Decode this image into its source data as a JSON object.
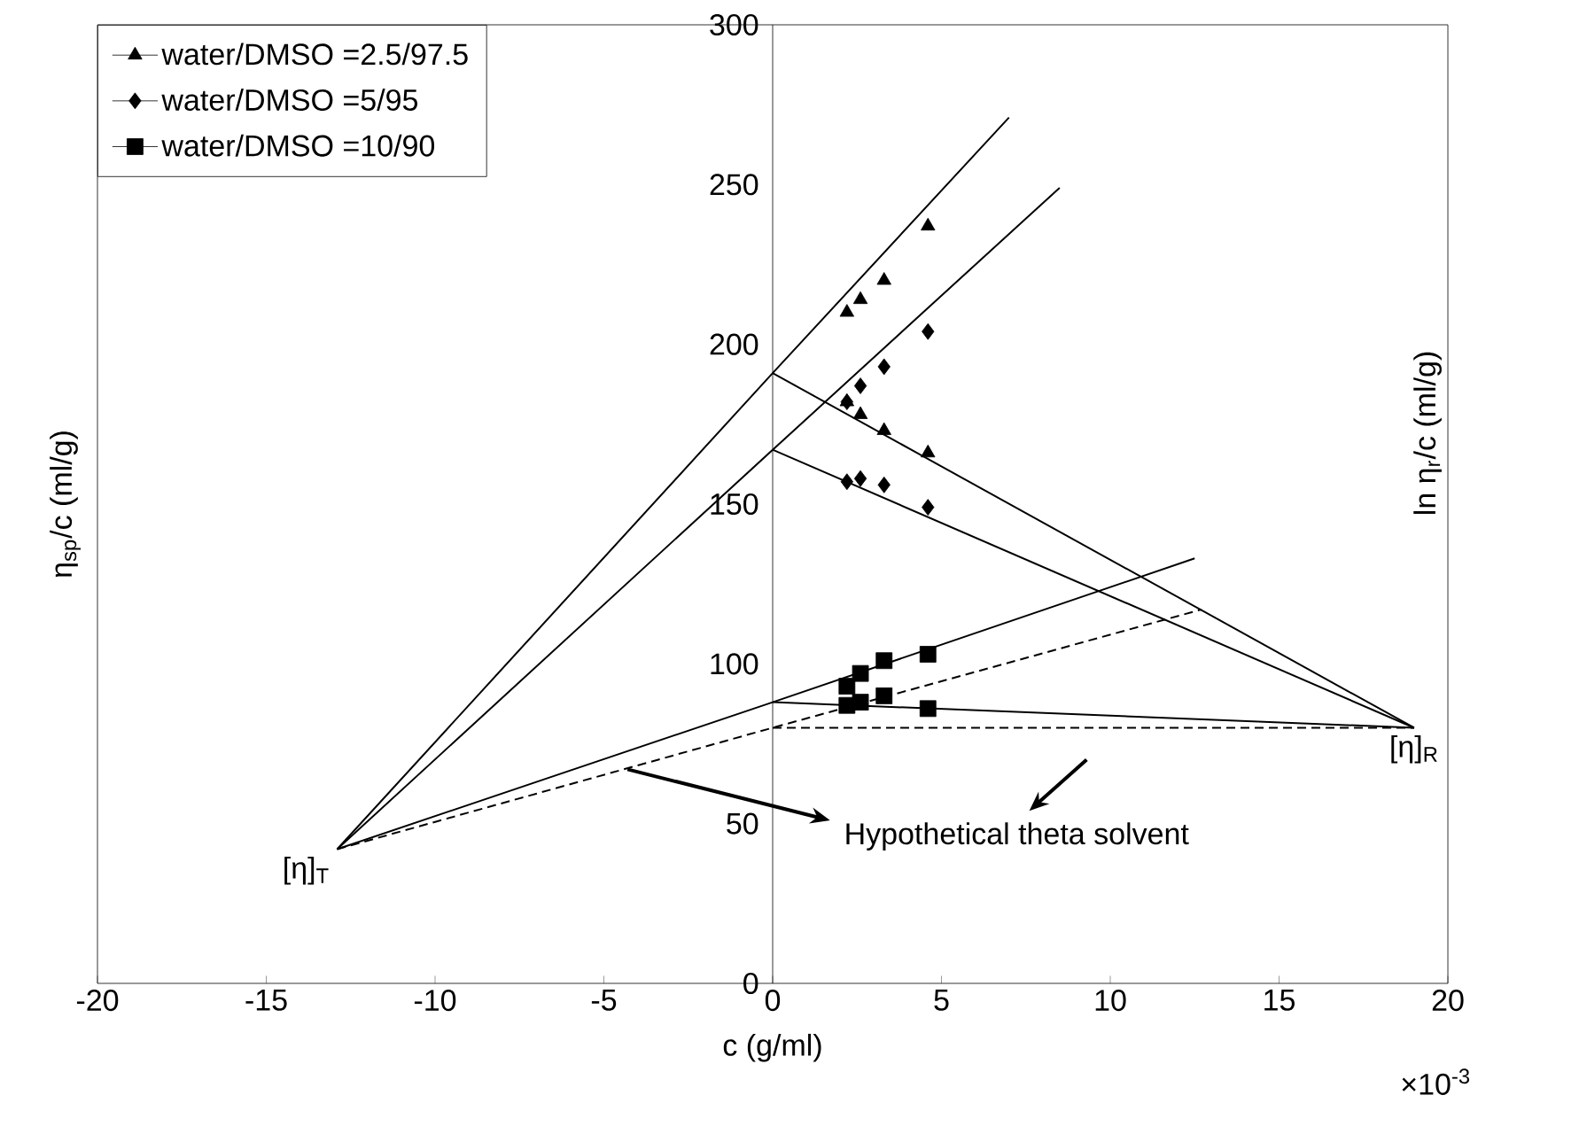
{
  "chart_data": {
    "type": "scatter",
    "xlabel": "c  (g/ml)",
    "ylabel": "η$_{sp}$/c  (ml/g)",
    "y2label": "ln η$_{r}$/c  (ml/g)",
    "xlim": [
      -20,
      20
    ],
    "ylim": [
      0,
      300
    ],
    "xticks": [
      -20,
      -15,
      -10,
      -5,
      0,
      5,
      10,
      15,
      20
    ],
    "yticks": [
      0,
      50,
      100,
      150,
      200,
      250,
      300
    ],
    "legend": "top left",
    "series": [
      {
        "name": "water/DMSO =2.5/97.5",
        "marker": "triangle",
        "color": "#000000",
        "x": [
          2.2,
          2.6,
          3.3,
          4.6
        ],
        "values": [
          210,
          214,
          220,
          237
        ]
      },
      {
        "name": "water/DMSO =5/95",
        "marker": "diamond",
        "color": "#000000",
        "x": [
          2.2,
          2.6,
          3.3,
          4.6
        ],
        "values": [
          182,
          187,
          193,
          204
        ]
      },
      {
        "name": "water/DMSO =10/90",
        "marker": "square",
        "color": "#000000",
        "x": [
          2.2,
          2.6,
          3.3,
          4.6
        ],
        "values": [
          93,
          97,
          101,
          103
        ]
      },
      {
        "marker": "triangle",
        "color": "#000000",
        "x": [
          2.2,
          2.6,
          3.3,
          4.6
        ],
        "values": [
          182,
          178,
          173,
          166
        ]
      },
      {
        "marker": "diamond",
        "color": "#000000",
        "x": [
          2.2,
          2.6,
          3.3,
          4.6
        ],
        "values": [
          157,
          158,
          156,
          149
        ]
      },
      {
        "marker": "square",
        "color": "#000000",
        "x": [
          2.2,
          2.6,
          3.3,
          4.6
        ],
        "values": [
          87,
          88,
          90,
          86
        ]
      },
      {
        "type": "line",
        "color": "#000000",
        "line_style": "solid",
        "x": [
          -12.9,
          0,
          7
        ],
        "values": [
          42,
          191,
          271
        ]
      },
      {
        "type": "line",
        "color": "#000000",
        "line_style": "solid",
        "x": [
          -12.9,
          0,
          8.5
        ],
        "values": [
          42,
          167,
          249
        ]
      },
      {
        "type": "line",
        "color": "#000000",
        "line_style": "solid",
        "x": [
          -12.9,
          0,
          12.5
        ],
        "values": [
          42,
          88,
          133
        ]
      },
      {
        "type": "line",
        "color": "#000000",
        "line_style": "solid",
        "x": [
          0,
          19
        ],
        "values": [
          191,
          80
        ]
      },
      {
        "type": "line",
        "color": "#000000",
        "line_style": "solid",
        "x": [
          0,
          19
        ],
        "values": [
          167,
          80
        ]
      },
      {
        "type": "line",
        "color": "#000000",
        "line_style": "solid",
        "x": [
          0,
          19
        ],
        "values": [
          88,
          80
        ]
      },
      {
        "type": "line",
        "color": "#000000",
        "line_style": "dashed",
        "x": [
          -12.9,
          0,
          12.7
        ],
        "values": [
          42,
          80,
          117
        ]
      },
      {
        "type": "line",
        "color": "#000000",
        "line_style": "dashed",
        "x": [
          0,
          19
        ],
        "values": [
          80,
          80
        ]
      }
    ],
    "annotations": [
      {
        "text": "[η]$_{T}$",
        "x": -12.9,
        "y": 42
      },
      {
        "text": "[η]$_{R}$",
        "x": 19,
        "y": 80
      },
      {
        "text": "Hypothetical theta solvent",
        "x": -4.3,
        "y": 67
      },
      "×10$^{-3}$"
    ]
  }
}
